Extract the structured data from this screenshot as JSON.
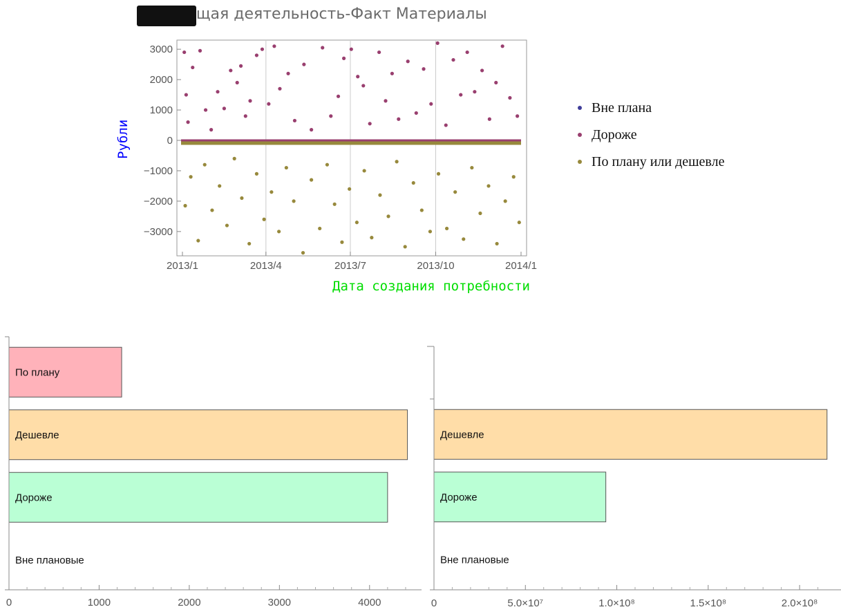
{
  "title": "К -Текущая деятельность-Факт Материалы",
  "colors": {
    "vne_plana": "#3f3d99",
    "dorozhe": "#993f6f",
    "po_planu": "#97893c",
    "bar_po_planu": "#ffb2ba",
    "bar_deshevle": "#ffdda8",
    "bar_dorozhe": "#baffd5"
  },
  "chart_data": [
    {
      "type": "scatter",
      "title": "К -Текущая деятельность-Факт Материалы",
      "xlabel": "Дата создания потребности",
      "ylabel": "Рубли",
      "x_range": [
        "2013-01-01",
        "2014-01-01"
      ],
      "ylim": [
        -3800,
        3300
      ],
      "x_ticks": [
        "2013/1",
        "2013/4",
        "2013/7",
        "2013/10",
        "2014/1"
      ],
      "y_ticks": [
        3000,
        2000,
        1000,
        0,
        -1000,
        -2000,
        -3000
      ],
      "grid": "vertical at quarter ticks",
      "legend_position": "right",
      "series": [
        {
          "name": "Вне плана",
          "points": []
        },
        {
          "name": "Дороже",
          "points": [
            [
              "2013-01-03",
              2900
            ],
            [
              "2013-01-05",
              1500
            ],
            [
              "2013-01-07",
              600
            ],
            [
              "2013-01-12",
              2400
            ],
            [
              "2013-01-20",
              2950
            ],
            [
              "2013-01-26",
              1000
            ],
            [
              "2013-02-01",
              350
            ],
            [
              "2013-02-08",
              1600
            ],
            [
              "2013-02-15",
              1050
            ],
            [
              "2013-02-22",
              2300
            ],
            [
              "2013-03-01",
              1900
            ],
            [
              "2013-03-05",
              2450
            ],
            [
              "2013-03-10",
              800
            ],
            [
              "2013-03-15",
              1300
            ],
            [
              "2013-03-22",
              2800
            ],
            [
              "2013-03-28",
              3000
            ],
            [
              "2013-04-04",
              1200
            ],
            [
              "2013-04-10",
              3100
            ],
            [
              "2013-04-16",
              1700
            ],
            [
              "2013-04-25",
              2200
            ],
            [
              "2013-05-02",
              650
            ],
            [
              "2013-05-12",
              2500
            ],
            [
              "2013-05-20",
              350
            ],
            [
              "2013-06-01",
              3050
            ],
            [
              "2013-06-10",
              800
            ],
            [
              "2013-06-18",
              1450
            ],
            [
              "2013-06-24",
              2700
            ],
            [
              "2013-07-02",
              3000
            ],
            [
              "2013-07-09",
              2100
            ],
            [
              "2013-07-15",
              1800
            ],
            [
              "2013-07-22",
              550
            ],
            [
              "2013-08-01",
              2900
            ],
            [
              "2013-08-08",
              1300
            ],
            [
              "2013-08-15",
              2200
            ],
            [
              "2013-08-22",
              700
            ],
            [
              "2013-09-01",
              2600
            ],
            [
              "2013-09-10",
              900
            ],
            [
              "2013-09-18",
              2350
            ],
            [
              "2013-09-26",
              1200
            ],
            [
              "2013-10-03",
              3200
            ],
            [
              "2013-10-12",
              500
            ],
            [
              "2013-10-20",
              2650
            ],
            [
              "2013-10-28",
              1500
            ],
            [
              "2013-11-04",
              2900
            ],
            [
              "2013-11-12",
              1600
            ],
            [
              "2013-11-20",
              2300
            ],
            [
              "2013-11-28",
              700
            ],
            [
              "2013-12-05",
              1900
            ],
            [
              "2013-12-12",
              3100
            ],
            [
              "2013-12-20",
              1400
            ],
            [
              "2013-12-28",
              800
            ]
          ]
        },
        {
          "name": "По плану или дешевле",
          "points": [
            [
              "2013-01-04",
              -2150
            ],
            [
              "2013-01-10",
              -1200
            ],
            [
              "2013-01-18",
              -3300
            ],
            [
              "2013-01-25",
              -800
            ],
            [
              "2013-02-02",
              -2300
            ],
            [
              "2013-02-10",
              -1500
            ],
            [
              "2013-02-18",
              -2800
            ],
            [
              "2013-02-26",
              -600
            ],
            [
              "2013-03-06",
              -1900
            ],
            [
              "2013-03-14",
              -3400
            ],
            [
              "2013-03-22",
              -1100
            ],
            [
              "2013-03-30",
              -2600
            ],
            [
              "2013-04-07",
              -1700
            ],
            [
              "2013-04-15",
              -3000
            ],
            [
              "2013-04-23",
              -900
            ],
            [
              "2013-05-01",
              -2000
            ],
            [
              "2013-05-11",
              -3700
            ],
            [
              "2013-05-20",
              -1300
            ],
            [
              "2013-05-29",
              -2900
            ],
            [
              "2013-06-06",
              -800
            ],
            [
              "2013-06-14",
              -2100
            ],
            [
              "2013-06-22",
              -3350
            ],
            [
              "2013-06-30",
              -1600
            ],
            [
              "2013-07-08",
              -2700
            ],
            [
              "2013-07-16",
              -1000
            ],
            [
              "2013-07-24",
              -3200
            ],
            [
              "2013-08-02",
              -1800
            ],
            [
              "2013-08-11",
              -2500
            ],
            [
              "2013-08-20",
              -700
            ],
            [
              "2013-08-29",
              -3500
            ],
            [
              "2013-09-07",
              -1400
            ],
            [
              "2013-09-16",
              -2300
            ],
            [
              "2013-09-25",
              -3000
            ],
            [
              "2013-10-04",
              -1100
            ],
            [
              "2013-10-13",
              -2900
            ],
            [
              "2013-10-22",
              -1700
            ],
            [
              "2013-10-31",
              -3250
            ],
            [
              "2013-11-09",
              -900
            ],
            [
              "2013-11-18",
              -2400
            ],
            [
              "2013-11-27",
              -1500
            ],
            [
              "2013-12-06",
              -3400
            ],
            [
              "2013-12-15",
              -2000
            ],
            [
              "2013-12-24",
              -1200
            ],
            [
              "2013-12-30",
              -2700
            ]
          ]
        }
      ]
    },
    {
      "type": "bar",
      "orientation": "horizontal",
      "categories": [
        "По плану",
        "Дешевле",
        "Дороже",
        "Вне плановые"
      ],
      "values": [
        1250,
        4420,
        4200,
        0
      ],
      "xlim": [
        0,
        4500
      ],
      "x_ticks": [
        "0",
        "1000",
        "2000",
        "3000",
        "4000"
      ]
    },
    {
      "type": "bar",
      "orientation": "horizontal",
      "categories": [
        "Дешевле",
        "Дороже",
        "Вне плановые"
      ],
      "values": [
        215000000,
        94000000,
        0
      ],
      "xlim": [
        0,
        220000000
      ],
      "x_ticks": [
        "0",
        "5.0×10⁷",
        "1.0×10⁸",
        "1.5×10⁸",
        "2.0×10⁸"
      ]
    }
  ]
}
